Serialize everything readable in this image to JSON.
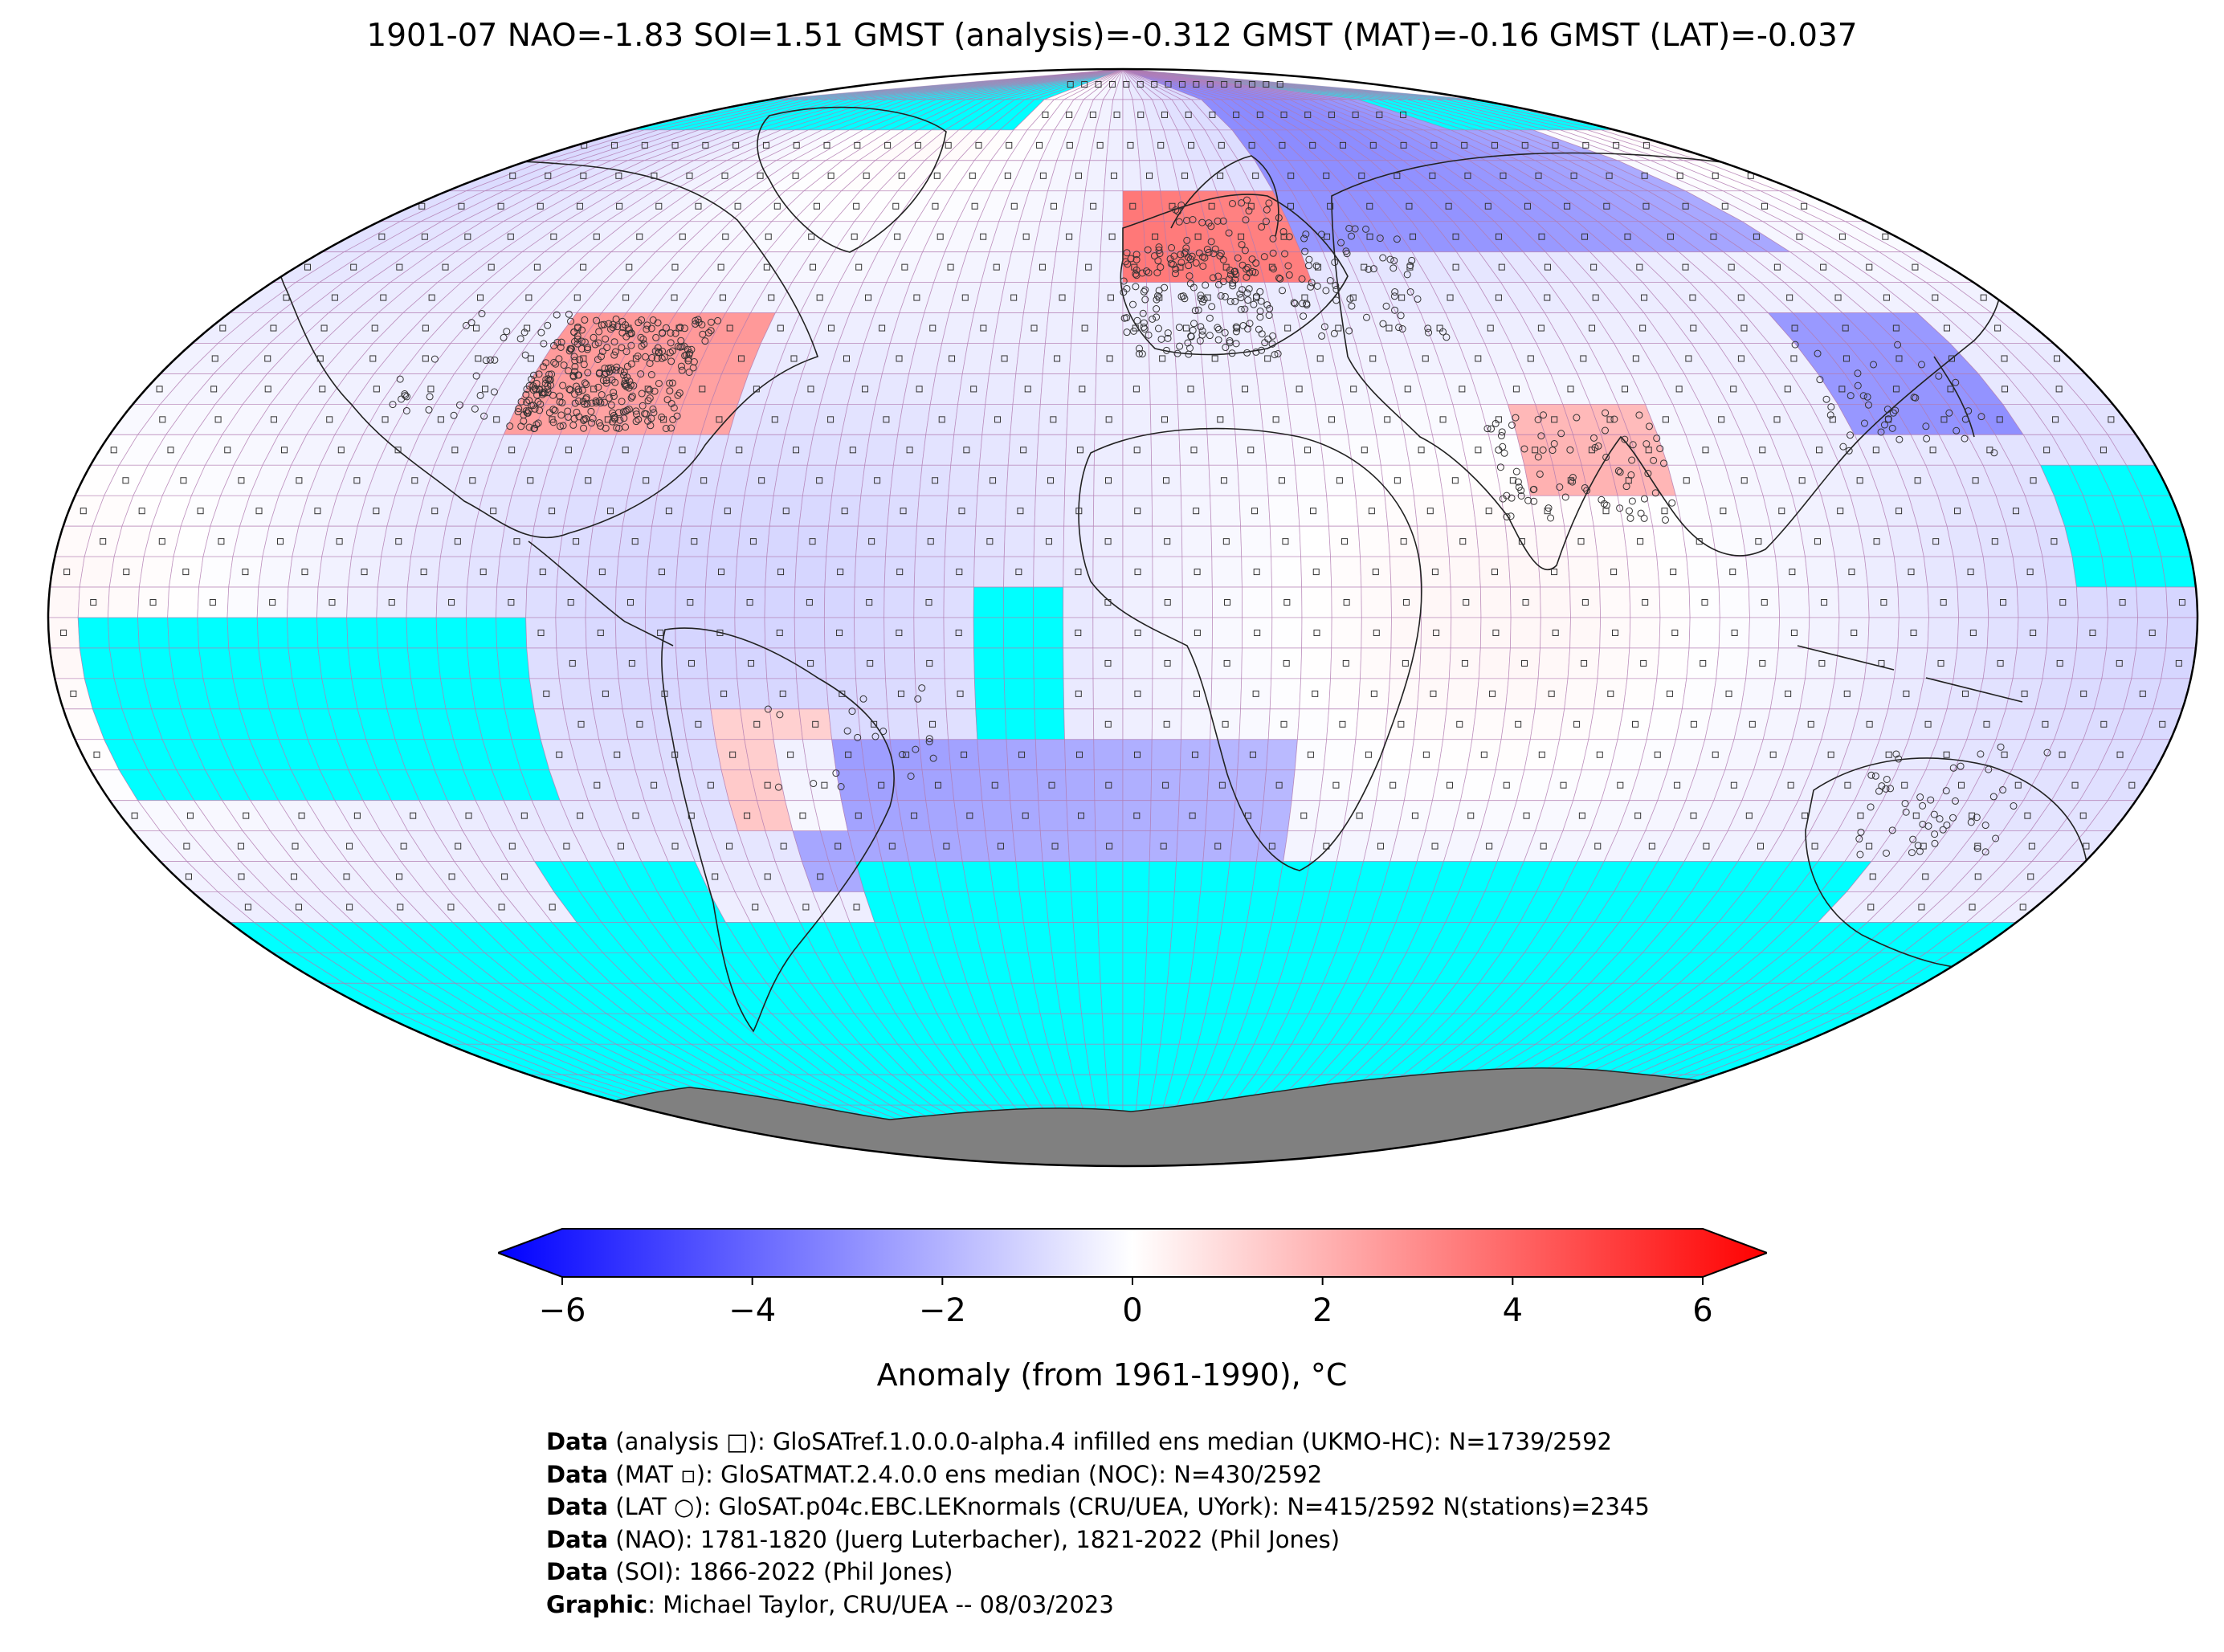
{
  "title": "1901-07 NAO=-1.83 SOI=1.51 GMST (analysis)=-0.312 GMST (MAT)=-0.16 GMST (LAT)=-0.037",
  "colorbar": {
    "label": "Anomaly (from 1961-1990), °C",
    "ticks": [
      "−6",
      "−4",
      "−2",
      "0",
      "2",
      "4",
      "6"
    ],
    "tick_values": [
      -6,
      -4,
      -2,
      0,
      2,
      4,
      6
    ],
    "range": [
      -6,
      6
    ],
    "colors": {
      "min": "#0000ff",
      "mid": "#ffffff",
      "max": "#ff0000"
    }
  },
  "map_colors": {
    "no_data": "#00ffff",
    "land_ice": "#808080",
    "grid": "#b07ab0"
  },
  "credits": [
    {
      "bold": "Data",
      "text": " (analysis □): GloSATref.1.0.0.0-alpha.4 infilled ens median (UKMO-HC): N=1739/2592"
    },
    {
      "bold": "Data",
      "text": " (MAT ▫): GloSATMAT.2.4.0.0 ens median (NOC): N=430/2592"
    },
    {
      "bold": "Data",
      "text": " (LAT ○): GloSAT.p04c.EBC.LEKnormals (CRU/UEA, UYork): N=415/2592 N(stations)=2345"
    },
    {
      "bold": "Data",
      "text": " (NAO): 1781-1820 (Juerg Luterbacher), 1821-2022 (Phil Jones)"
    },
    {
      "bold": "Data",
      "text": " (SOI): 1866-2022 (Phil Jones)"
    },
    {
      "bold": "Graphic",
      "text": ": Michael Taylor, CRU/UEA -- 08/03/2023"
    }
  ]
}
